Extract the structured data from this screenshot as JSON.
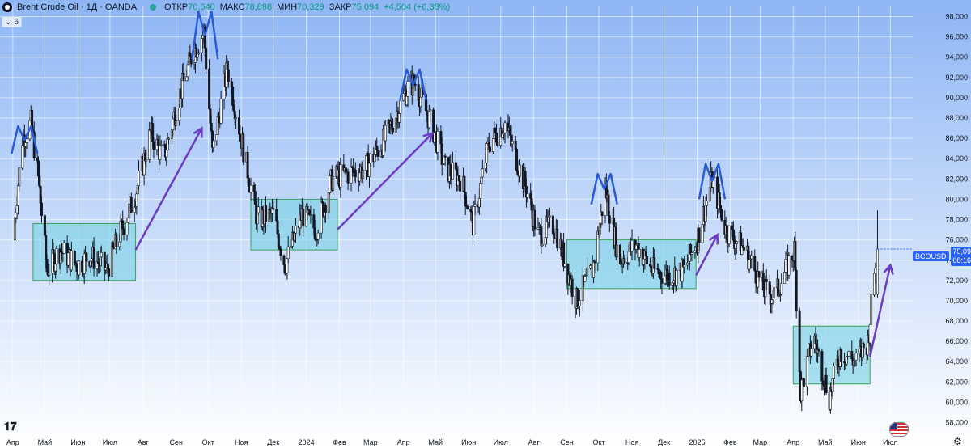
{
  "header": {
    "title": "Brent Crude Oil · 1Д · OANDA",
    "open_label": "ОТКР",
    "open_value": "70,640",
    "high_label": "МАКС",
    "high_value": "78,898",
    "low_label": "МИН",
    "low_value": "70,329",
    "close_label": "ЗАКР",
    "close_value": "75,094",
    "change": "+4,504 (+6,38%)",
    "indicator_count": "6"
  },
  "price_tag": {
    "symbol": "BCOUSD",
    "price": "75,094",
    "countdown": "08:16:40"
  },
  "colors": {
    "background_top": "#8eb6f5",
    "background_bottom": "#ffffff",
    "zone_fill": "#7ed3e6",
    "zone_border": "#3aa15a",
    "peak_marks": "#2a5bd7",
    "trend_arrows": "#6a3cc7",
    "candles": "#131722",
    "accent": "#2962ff"
  },
  "chart_data": {
    "type": "candlestick",
    "title": "Brent Crude Oil · 1Д · OANDA",
    "x_tick_labels": [
      "Апр",
      "Май",
      "Июн",
      "Июл",
      "Авг",
      "Сен",
      "Окт",
      "Ноя",
      "Дек",
      "2024",
      "Фев",
      "Мар",
      "Апр",
      "Май",
      "Июн",
      "Июл",
      "Авг",
      "Сен",
      "Окт",
      "Ноя",
      "Дек",
      "2025",
      "Фев",
      "Мар",
      "Апр",
      "Май",
      "Июн",
      "Июл"
    ],
    "y_tick_labels": [
      "58,000",
      "60,000",
      "62,000",
      "64,000",
      "66,000",
      "68,000",
      "70,000",
      "72,000",
      "74,000",
      "76,000",
      "78,000",
      "80,000",
      "82,000",
      "84,000",
      "86,000",
      "88,000",
      "90,000",
      "92,000",
      "94,000",
      "96,000",
      "98,000"
    ],
    "ylim": [
      57,
      99
    ],
    "price_path": [
      [
        "2023-04-01",
        76.0
      ],
      [
        "2023-04-10",
        86.0
      ],
      [
        "2023-04-18",
        87.5
      ],
      [
        "2023-04-25",
        82.0
      ],
      [
        "2023-05-03",
        73.0
      ],
      [
        "2023-05-15",
        75.0
      ],
      [
        "2023-06-01",
        73.5
      ],
      [
        "2023-06-12",
        74.5
      ],
      [
        "2023-06-28",
        73.0
      ],
      [
        "2023-07-10",
        76.5
      ],
      [
        "2023-07-25",
        80.5
      ],
      [
        "2023-08-08",
        86.5
      ],
      [
        "2023-08-20",
        84.0
      ],
      [
        "2023-09-01",
        89.0
      ],
      [
        "2023-09-15",
        94.0
      ],
      [
        "2023-09-27",
        96.5
      ],
      [
        "2023-10-05",
        84.5
      ],
      [
        "2023-10-19",
        93.0
      ],
      [
        "2023-11-01",
        86.0
      ],
      [
        "2023-11-16",
        78.0
      ],
      [
        "2023-12-01",
        78.5
      ],
      [
        "2023-12-12",
        73.5
      ],
      [
        "2023-12-28",
        78.5
      ],
      [
        "2024-01-10",
        77.0
      ],
      [
        "2024-01-25",
        82.0
      ],
      [
        "2024-02-08",
        82.5
      ],
      [
        "2024-02-25",
        83.0
      ],
      [
        "2024-03-15",
        86.0
      ],
      [
        "2024-04-05",
        91.0
      ],
      [
        "2024-04-12",
        91.5
      ],
      [
        "2024-04-30",
        86.5
      ],
      [
        "2024-05-10",
        83.0
      ],
      [
        "2024-05-25",
        82.0
      ],
      [
        "2024-06-05",
        77.5
      ],
      [
        "2024-06-20",
        85.5
      ],
      [
        "2024-07-05",
        87.5
      ],
      [
        "2024-07-25",
        81.0
      ],
      [
        "2024-08-05",
        76.5
      ],
      [
        "2024-08-20",
        77.5
      ],
      [
        "2024-09-10",
        70.0
      ],
      [
        "2024-09-25",
        73.0
      ],
      [
        "2024-10-07",
        81.0
      ],
      [
        "2024-10-20",
        74.0
      ],
      [
        "2024-11-05",
        75.5
      ],
      [
        "2024-11-20",
        73.0
      ],
      [
        "2024-12-05",
        72.5
      ],
      [
        "2024-12-20",
        73.0
      ],
      [
        "2025-01-01",
        76.0
      ],
      [
        "2025-01-15",
        82.0
      ],
      [
        "2025-01-28",
        77.0
      ],
      [
        "2025-02-15",
        75.0
      ],
      [
        "2025-03-05",
        71.0
      ],
      [
        "2025-03-15",
        70.5
      ],
      [
        "2025-04-02",
        75.0
      ],
      [
        "2025-04-08",
        61.0
      ],
      [
        "2025-04-20",
        66.5
      ],
      [
        "2025-05-05",
        60.5
      ],
      [
        "2025-05-15",
        65.0
      ],
      [
        "2025-05-30",
        64.0
      ],
      [
        "2025-06-10",
        66.0
      ],
      [
        "2025-06-18",
        75.094
      ]
    ],
    "last_bar": {
      "open": 70.64,
      "high": 78.898,
      "low": 70.329,
      "close": 75.094
    },
    "annotations": {
      "consolidation_zones": [
        {
          "start": "2023-04-20",
          "end": "2023-07-25",
          "low": 72.0,
          "high": 77.6
        },
        {
          "start": "2023-11-10",
          "end": "2024-01-30",
          "low": 75.0,
          "high": 80.0
        },
        {
          "start": "2024-09-01",
          "end": "2024-12-31",
          "low": 71.2,
          "high": 76.0
        },
        {
          "start": "2025-04-01",
          "end": "2025-06-12",
          "low": 61.8,
          "high": 67.5
        }
      ],
      "trend_arrows": [
        {
          "from": [
            "2023-07-25",
            75.0
          ],
          "to": [
            "2023-09-25",
            87.0
          ]
        },
        {
          "from": [
            "2024-01-30",
            77.0
          ],
          "to": [
            "2024-04-28",
            86.5
          ]
        },
        {
          "from": [
            "2024-12-31",
            72.5
          ],
          "to": [
            "2025-01-20",
            76.5
          ]
        },
        {
          "from": [
            "2025-06-12",
            64.5
          ],
          "to": [
            "2025-07-01",
            73.5
          ]
        }
      ],
      "peak_marks": [
        {
          "date": "2023-04-12",
          "low": 84.5,
          "high": 87.2
        },
        {
          "date": "2023-09-28",
          "low": 93.8,
          "high": 98.5
        },
        {
          "date": "2024-04-10",
          "low": 89.8,
          "high": 92.8
        },
        {
          "date": "2024-10-06",
          "low": 79.5,
          "high": 82.5
        },
        {
          "date": "2025-01-15",
          "low": 80.0,
          "high": 83.5
        }
      ]
    }
  }
}
